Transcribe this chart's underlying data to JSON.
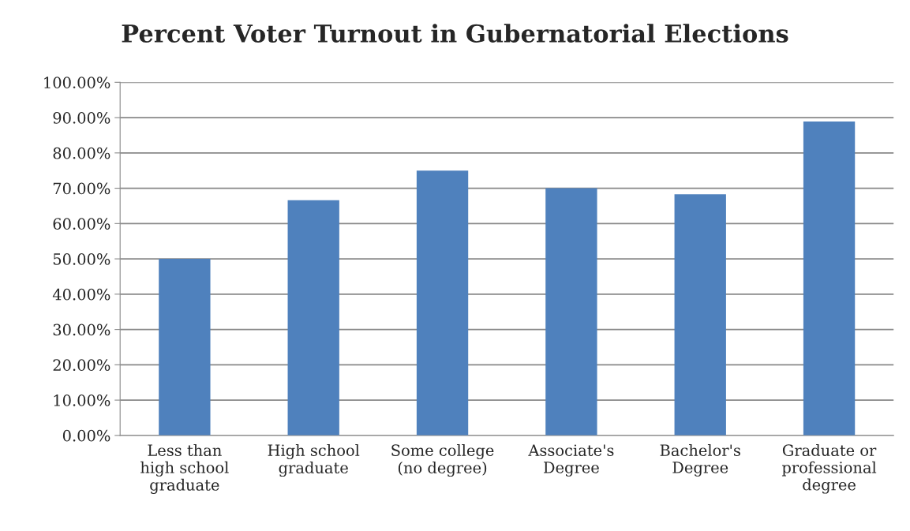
{
  "chart_data": {
    "type": "bar",
    "title": "Percent Voter Turnout in Gubernatorial Elections",
    "categories": [
      "Less than\nhigh school\ngraduate",
      "High school\ngraduate",
      "Some college\n(no degree)",
      "Associate's\nDegree",
      "Bachelor's\nDegree",
      "Graduate or\nprofessional\ndegree"
    ],
    "values": [
      50,
      66.6,
      75,
      70,
      68.3,
      88.9
    ],
    "color": "#4f81bd",
    "ylim": [
      0,
      100
    ],
    "yticks": [
      {
        "value": 0,
        "label": "0.00%"
      },
      {
        "value": 10,
        "label": "10.00%"
      },
      {
        "value": 20,
        "label": "20.00%"
      },
      {
        "value": 30,
        "label": "30.00%"
      },
      {
        "value": 40,
        "label": "40.00%"
      },
      {
        "value": 50,
        "label": "50.00%"
      },
      {
        "value": 60,
        "label": "60.00%"
      },
      {
        "value": 70,
        "label": "70.00%"
      },
      {
        "value": 80,
        "label": "80.00%"
      },
      {
        "value": 90,
        "label": "90.00%"
      },
      {
        "value": 100,
        "label": "100.00%"
      }
    ],
    "grid": "y",
    "legend": false
  }
}
